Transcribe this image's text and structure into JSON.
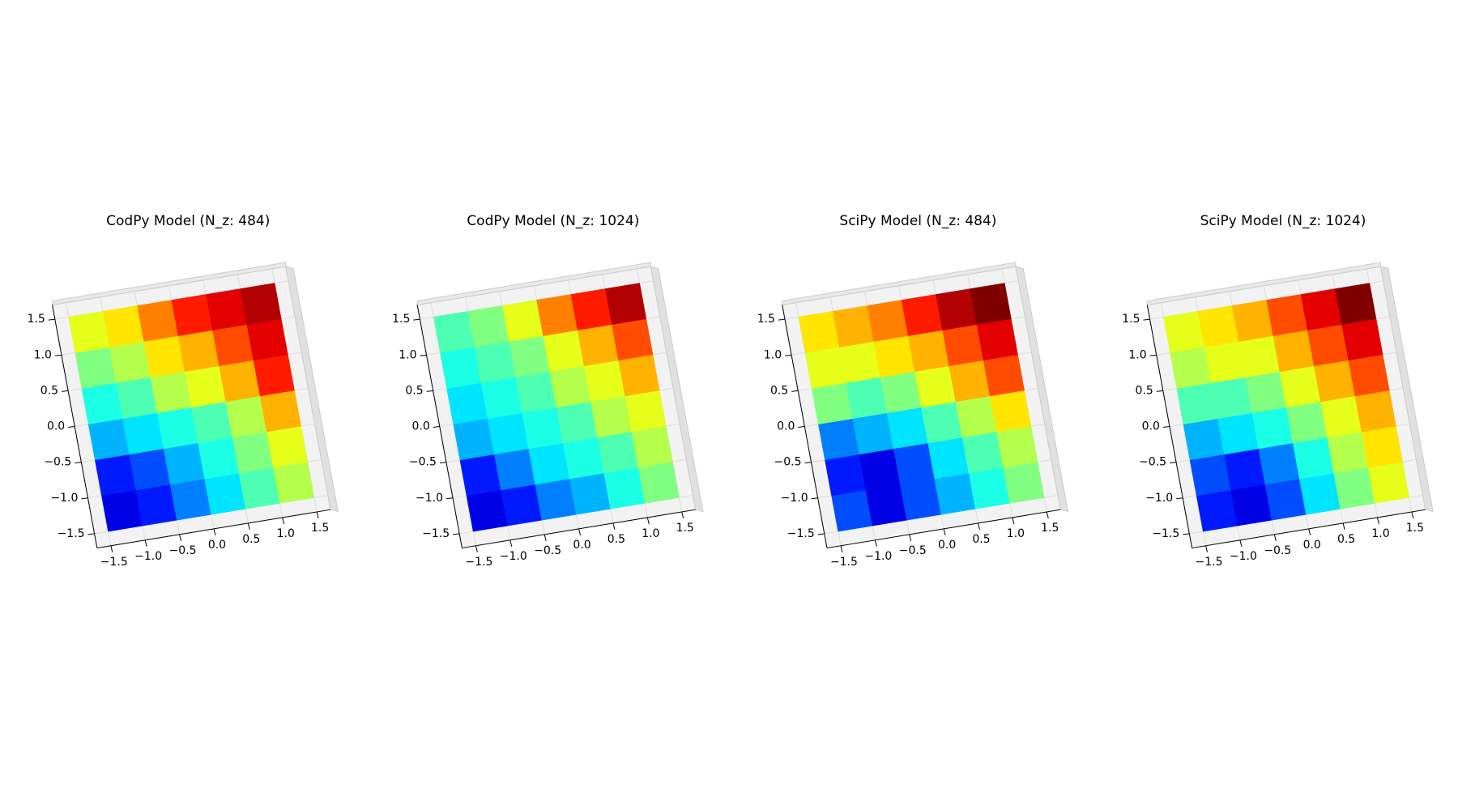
{
  "chart_data": [
    {
      "type": "surface3d",
      "title": "CodPy Model (N_z: 484)",
      "colormap": "jet",
      "zlim": [
        0,
        1
      ],
      "xlim": [
        -1.7,
        1.7
      ],
      "ylim": [
        -1.7,
        1.7
      ],
      "xticks": [
        {
          "value": -1.5,
          "label": "−1.5"
        },
        {
          "value": -1.0,
          "label": "−1.0"
        },
        {
          "value": -0.5,
          "label": "−0.5"
        },
        {
          "value": 0,
          "label": "0.0"
        },
        0.5,
        {
          "value": 1.0,
          "label": "1.0"
        },
        1.5
      ],
      "yticks": [
        {
          "value": -1.5,
          "label": "−1.5"
        },
        {
          "value": -1.0,
          "label": "−1.0"
        },
        {
          "value": -0.5,
          "label": "−0.5"
        },
        {
          "value": 0,
          "label": "0.0"
        },
        0.5,
        {
          "value": 1.0,
          "label": "1.0"
        },
        1.5
      ],
      "z": [
        [
          0.1,
          0.15,
          0.25,
          0.35,
          0.45,
          0.55
        ],
        [
          0.15,
          0.2,
          0.3,
          0.4,
          0.5,
          0.6
        ],
        [
          0.3,
          0.35,
          0.4,
          0.45,
          0.55,
          0.7
        ],
        [
          0.4,
          0.45,
          0.55,
          0.6,
          0.7,
          0.85
        ],
        [
          0.5,
          0.55,
          0.65,
          0.7,
          0.8,
          0.9
        ],
        [
          0.6,
          0.65,
          0.75,
          0.85,
          0.9,
          0.95
        ]
      ]
    },
    {
      "type": "surface3d",
      "title": "CodPy Model (N_z: 1024)",
      "colormap": "jet",
      "zlim": [
        0,
        1
      ],
      "xlim": [
        -1.7,
        1.7
      ],
      "ylim": [
        -1.7,
        1.7
      ],
      "xticks": [
        {
          "value": -1.5,
          "label": "−1.5"
        },
        {
          "value": -1.0,
          "label": "−1.0"
        },
        {
          "value": -0.5,
          "label": "−0.5"
        },
        {
          "value": 0,
          "label": "0.0"
        },
        0.5,
        {
          "value": 1.0,
          "label": "1.0"
        },
        1.5
      ],
      "yticks": [
        {
          "value": -1.5,
          "label": "−1.5"
        },
        {
          "value": -1.0,
          "label": "−1.0"
        },
        {
          "value": -0.5,
          "label": "−0.5"
        },
        {
          "value": 0,
          "label": "0.0"
        },
        0.5,
        {
          "value": 1.0,
          "label": "1.0"
        },
        1.5
      ],
      "z": [
        [
          0.1,
          0.15,
          0.25,
          0.3,
          0.4,
          0.5
        ],
        [
          0.15,
          0.25,
          0.35,
          0.4,
          0.45,
          0.55
        ],
        [
          0.3,
          0.35,
          0.4,
          0.45,
          0.55,
          0.6
        ],
        [
          0.35,
          0.4,
          0.45,
          0.55,
          0.6,
          0.7
        ],
        [
          0.4,
          0.45,
          0.5,
          0.6,
          0.7,
          0.8
        ],
        [
          0.45,
          0.5,
          0.6,
          0.75,
          0.85,
          0.95
        ]
      ]
    },
    {
      "type": "surface3d",
      "title": "SciPy Model (N_z: 484)",
      "colormap": "jet",
      "zlim": [
        0,
        1
      ],
      "xlim": [
        -1.7,
        1.7
      ],
      "ylim": [
        -1.7,
        1.7
      ],
      "xticks": [
        {
          "value": -1.5,
          "label": "−1.5"
        },
        {
          "value": -1.0,
          "label": "−1.0"
        },
        {
          "value": -0.5,
          "label": "−0.5"
        },
        {
          "value": 0,
          "label": "0.0"
        },
        0.5,
        {
          "value": 1.0,
          "label": "1.0"
        },
        1.5
      ],
      "yticks": [
        {
          "value": -1.5,
          "label": "−1.5"
        },
        {
          "value": -1.0,
          "label": "−1.0"
        },
        {
          "value": -0.5,
          "label": "−0.5"
        },
        {
          "value": 0,
          "label": "0.0"
        },
        0.5,
        {
          "value": 1.0,
          "label": "1.0"
        },
        1.5
      ],
      "z": [
        [
          0.2,
          0.1,
          0.2,
          0.3,
          0.4,
          0.5
        ],
        [
          0.15,
          0.1,
          0.2,
          0.35,
          0.45,
          0.55
        ],
        [
          0.25,
          0.3,
          0.35,
          0.45,
          0.55,
          0.65
        ],
        [
          0.5,
          0.45,
          0.5,
          0.6,
          0.7,
          0.8
        ],
        [
          0.6,
          0.6,
          0.65,
          0.7,
          0.8,
          0.9
        ],
        [
          0.65,
          0.7,
          0.75,
          0.85,
          0.95,
          1.0
        ]
      ]
    },
    {
      "type": "surface3d",
      "title": "SciPy Model (N_z: 1024)",
      "colormap": "jet",
      "zlim": [
        0,
        1
      ],
      "xlim": [
        -1.7,
        1.7
      ],
      "ylim": [
        -1.7,
        1.7
      ],
      "xticks": [
        {
          "value": -1.5,
          "label": "−1.5"
        },
        {
          "value": -1.0,
          "label": "−1.0"
        },
        {
          "value": -0.5,
          "label": "−0.5"
        },
        {
          "value": 0,
          "label": "0.0"
        },
        0.5,
        {
          "value": 1.0,
          "label": "1.0"
        },
        1.5
      ],
      "yticks": [
        {
          "value": -1.5,
          "label": "−1.5"
        },
        {
          "value": -1.0,
          "label": "−1.0"
        },
        {
          "value": -0.5,
          "label": "−0.5"
        },
        {
          "value": 0,
          "label": "0.0"
        },
        0.5,
        {
          "value": 1.0,
          "label": "1.0"
        },
        1.5
      ],
      "z": [
        [
          0.15,
          0.1,
          0.2,
          0.35,
          0.5,
          0.6
        ],
        [
          0.2,
          0.15,
          0.25,
          0.4,
          0.55,
          0.65
        ],
        [
          0.3,
          0.35,
          0.4,
          0.5,
          0.6,
          0.7
        ],
        [
          0.45,
          0.45,
          0.5,
          0.6,
          0.7,
          0.8
        ],
        [
          0.55,
          0.6,
          0.6,
          0.7,
          0.8,
          0.9
        ],
        [
          0.6,
          0.65,
          0.7,
          0.8,
          0.9,
          1.0
        ]
      ]
    }
  ]
}
